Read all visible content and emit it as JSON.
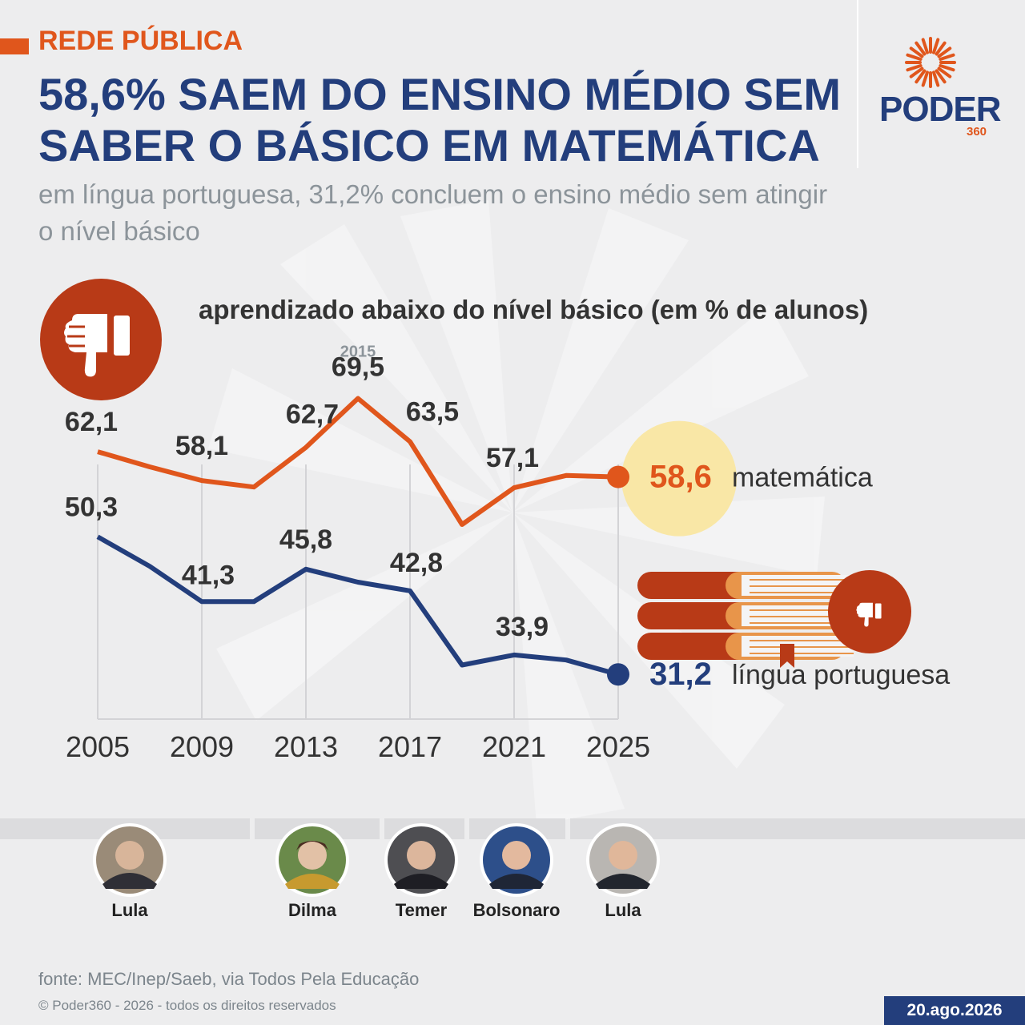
{
  "header": {
    "kicker": "REDE PÚBLICA",
    "title": "58,6% SAEM DO ENSINO MÉDIO SEM SABER O BÁSICO EM MATEMÁTICA",
    "subtitle": "em língua portuguesa, 31,2% concluem o ensino médio sem atingir o nível básico"
  },
  "logo": {
    "word": "PODER",
    "number": "360"
  },
  "colors": {
    "math": "#e0561c",
    "portuguese": "#233e7c",
    "accent_dark": "#b83a17",
    "highlight": "#f9e7a6",
    "book_page": "#e8954a"
  },
  "chart_data": {
    "type": "line",
    "title": "aprendizado abaixo do nível básico (em % de alunos)",
    "x": [
      2005,
      2007,
      2009,
      2011,
      2013,
      2015,
      2017,
      2019,
      2021,
      2023,
      2025
    ],
    "x_ticks": [
      "2005",
      "2009",
      "2013",
      "2017",
      "2021",
      "2025"
    ],
    "ylim": [
      25,
      75
    ],
    "grid": true,
    "series": [
      {
        "name": "matemática",
        "values": [
          62.1,
          60.0,
          58.1,
          57.2,
          62.7,
          69.5,
          63.5,
          52.0,
          57.1,
          58.8,
          58.6
        ],
        "labels": [
          "62,1",
          "",
          "58,1",
          "",
          "62,7",
          "69,5",
          "63,5",
          "",
          "57,1",
          "",
          ""
        ],
        "end_label": "58,6"
      },
      {
        "name": "língua portuguesa",
        "values": [
          50.3,
          46.2,
          41.3,
          41.3,
          45.8,
          44.0,
          42.8,
          32.5,
          33.9,
          33.2,
          31.2
        ],
        "labels": [
          "50,3",
          "",
          "41,3",
          "",
          "45,8",
          "",
          "42,8",
          "",
          "33,9",
          "",
          ""
        ],
        "end_label": "31,2"
      }
    ],
    "annotations": [
      {
        "x": 2015,
        "text": "2015"
      }
    ]
  },
  "presidents": [
    {
      "name": "Lula"
    },
    {
      "name": "Dilma"
    },
    {
      "name": "Temer"
    },
    {
      "name": "Bolsonaro"
    },
    {
      "name": "Lula"
    }
  ],
  "footer": {
    "source": "fonte: MEC/Inep/Saeb, via Todos Pela Educação",
    "copyright": "© Poder360 - 2026 - todos os direitos reservados",
    "date": "20.ago.2026"
  }
}
